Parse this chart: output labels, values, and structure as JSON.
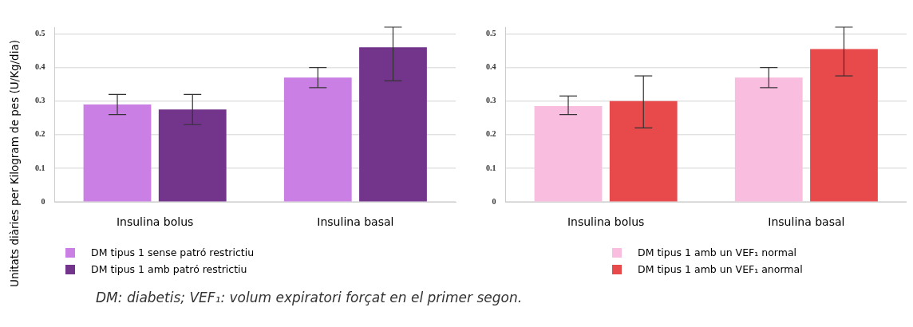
{
  "chart_data": [
    {
      "type": "bar",
      "ylabel": "Unitats diàries per Kilogram de pes (U/Kg/dia)",
      "categories": [
        "Insulina bolus",
        "Insulina basal"
      ],
      "ylim": [
        0,
        0.52
      ],
      "yticks": [
        0,
        0.1,
        0.2,
        0.3,
        0.4,
        0.5
      ],
      "grid": "y",
      "legend": "bottom left",
      "series": [
        {
          "name": "DM tipus 1 sense patró restrictiu",
          "color": "#c97fe3",
          "values": [
            0.29,
            0.37
          ],
          "errors": [
            [
              0.26,
              0.32
            ],
            [
              0.34,
              0.4
            ]
          ]
        },
        {
          "name": "DM tipus 1 amb patró restrictiu",
          "color": "#73348c",
          "values": [
            0.275,
            0.46
          ],
          "errors": [
            [
              0.23,
              0.32
            ],
            [
              0.36,
              0.52
            ]
          ]
        }
      ],
      "annotations": [
        "DM: diabetis; VEF₁: volum expiratori forçat en el primer segon."
      ]
    },
    {
      "type": "bar",
      "categories": [
        "Insulina bolus",
        "Insulina basal"
      ],
      "ylim": [
        0,
        0.52
      ],
      "yticks": [
        0,
        0.1,
        0.2,
        0.3,
        0.4,
        0.5
      ],
      "grid": "y",
      "legend": "bottom",
      "series": [
        {
          "name": "DM tipus 1 amb un VEF₁ normal",
          "color": "#f9bde0",
          "values": [
            0.285,
            0.37
          ],
          "errors": [
            [
              0.26,
              0.315
            ],
            [
              0.34,
              0.4
            ]
          ]
        },
        {
          "name": "DM tipus 1 amb un VEF₁ anormal",
          "color": "#e84a4c",
          "values": [
            0.3,
            0.455
          ],
          "errors": [
            [
              0.22,
              0.375
            ],
            [
              0.375,
              0.52
            ]
          ]
        }
      ]
    }
  ]
}
